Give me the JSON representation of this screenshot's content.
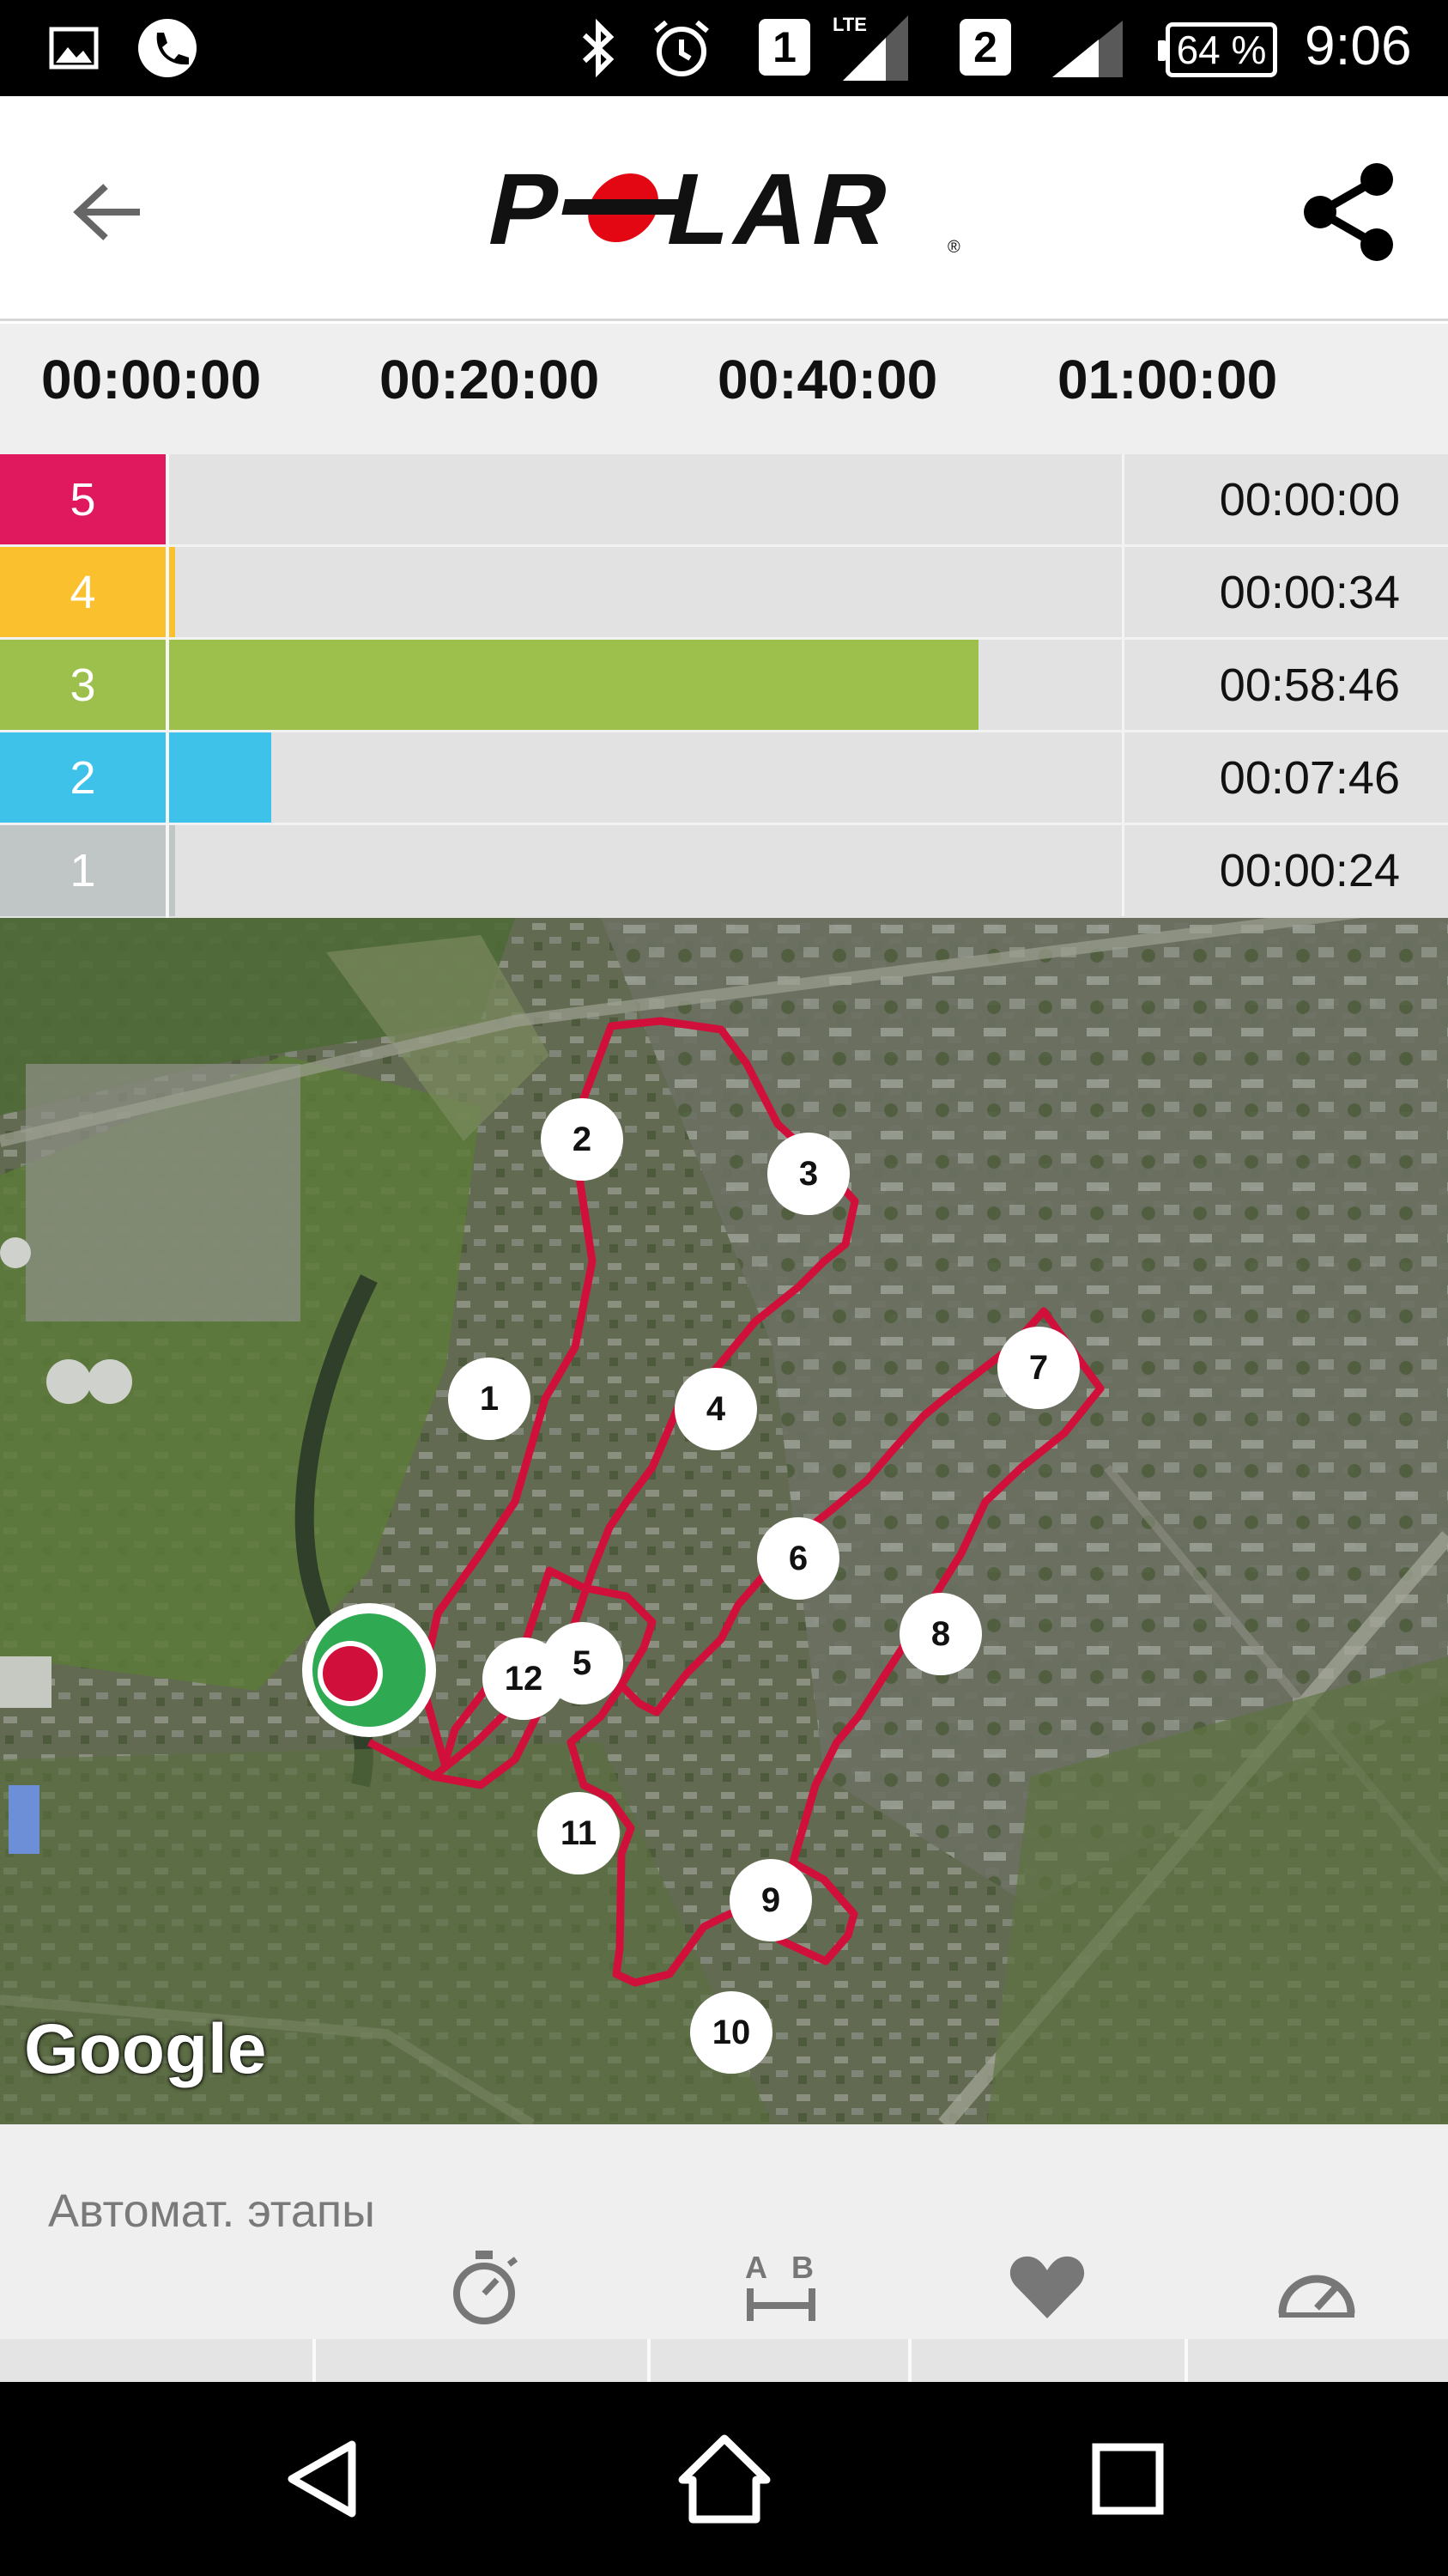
{
  "status_bar": {
    "sim1": "1",
    "sim2": "2",
    "lte": "LTE",
    "battery": "64 %",
    "time": "9:06",
    "icons": [
      "gallery-icon",
      "phone-icon",
      "bluetooth-icon",
      "alarm-icon",
      "signal-icon",
      "signal-icon"
    ]
  },
  "header": {
    "logo_text": "POLAR",
    "logo_color": "#e30613",
    "back_icon": "arrow-left-icon",
    "share_icon": "share-icon"
  },
  "timeline": {
    "ticks": [
      "00:00:00",
      "00:20:00",
      "00:40:00",
      "01:00:00"
    ]
  },
  "zones": [
    {
      "zone": "5",
      "time": "00:00:00",
      "color": "#e0195f",
      "fraction": 0.0
    },
    {
      "zone": "4",
      "time": "00:00:34",
      "color": "#fbc02d",
      "fraction": 0.01
    },
    {
      "zone": "3",
      "time": "00:58:46",
      "color": "#9cc04b",
      "fraction": 0.85
    },
    {
      "zone": "2",
      "time": "00:07:46",
      "color": "#3fc2ea",
      "fraction": 0.11
    },
    {
      "zone": "1",
      "time": "00:00:24",
      "color": "#c0c6c6",
      "fraction": 0.01
    }
  ],
  "map": {
    "attribution": "Google",
    "route_color": "#d0103a",
    "markers": [
      "1",
      "2",
      "3",
      "4",
      "5",
      "6",
      "7",
      "8",
      "9",
      "10",
      "11",
      "12"
    ],
    "start_marker": "start-marker-icon"
  },
  "bottom": {
    "auto_laps_label": "Автомат. этапы",
    "tools": [
      "stopwatch-icon",
      "distance-ab-icon",
      "heart-icon",
      "speedometer-icon"
    ]
  },
  "navbar": {
    "buttons": [
      "back-triangle-icon",
      "home-icon",
      "recents-icon"
    ]
  }
}
